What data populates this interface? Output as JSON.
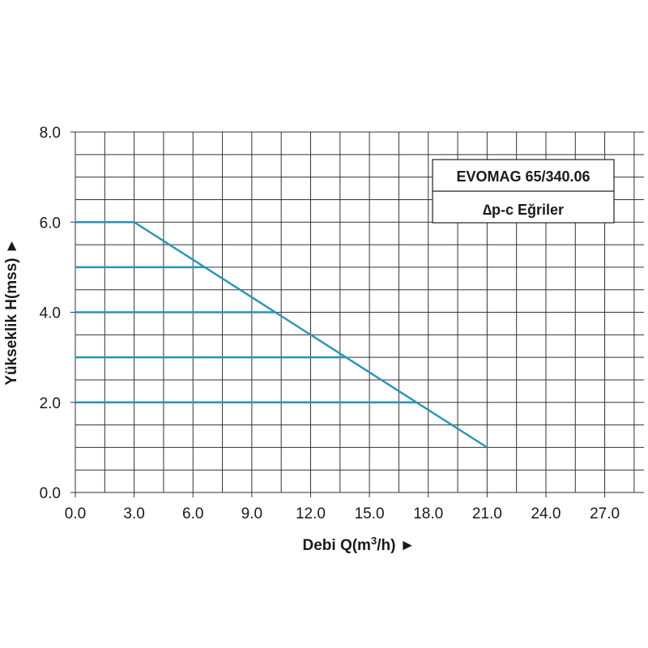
{
  "chart_data": {
    "type": "line",
    "box_title": "EVOMAG 65/340.06",
    "box_subtitle": "∆p-c Eğriler",
    "xlabel_main": "Debi Q(m",
    "xlabel_sup": "3",
    "xlabel_end": "/h) ►",
    "ylabel": "Yükseklik H(mss) ►",
    "xlim": [
      0,
      29
    ],
    "ylim": [
      0,
      8
    ],
    "x_ticks": [
      0,
      3,
      6,
      9,
      12,
      15,
      18,
      21,
      24,
      27
    ],
    "x_tick_labels": [
      "0.0",
      "3.0",
      "6.0",
      "9.0",
      "12.0",
      "15.0",
      "18.0",
      "21.0",
      "24.0",
      "27.0"
    ],
    "y_ticks": [
      0,
      2,
      4,
      6,
      8
    ],
    "y_tick_labels": [
      "0.0",
      "2.0",
      "4.0",
      "6.0",
      "8.0"
    ],
    "grid": true,
    "line_color": "#2a93b5",
    "grid_color": "#333333",
    "series": [
      {
        "x": [
          0,
          3.0,
          21.0
        ],
        "y": [
          6.0,
          6.0,
          1.0
        ]
      },
      {
        "x": [
          0,
          6.6
        ],
        "y": [
          5.0,
          5.0
        ]
      },
      {
        "x": [
          0,
          10.2
        ],
        "y": [
          4.0,
          4.0
        ]
      },
      {
        "x": [
          0,
          13.8
        ],
        "y": [
          3.0,
          3.0
        ]
      },
      {
        "x": [
          0,
          17.4
        ],
        "y": [
          2.0,
          2.0
        ]
      }
    ]
  }
}
